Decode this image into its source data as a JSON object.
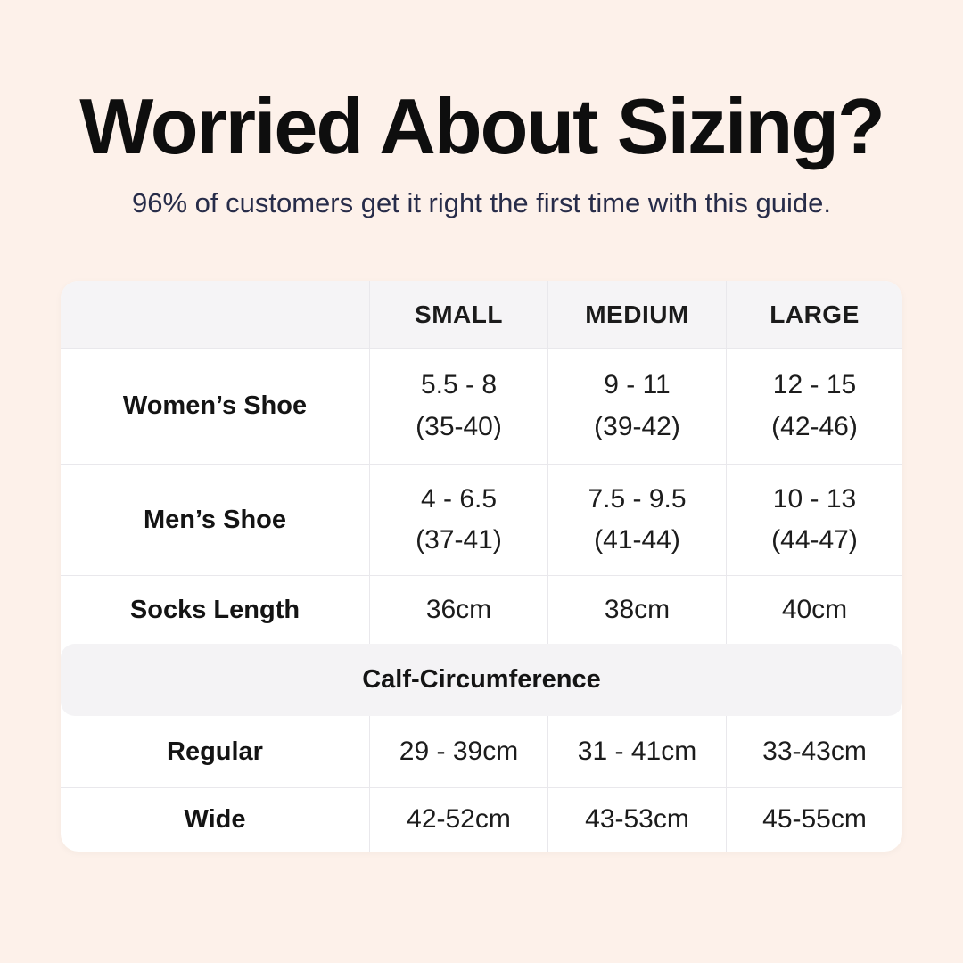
{
  "page": {
    "background_color": "#fdf1ea",
    "title_color": "#0e0e0e",
    "subtitle_color": "#272c49",
    "table_header_bg": "#f5f4f6",
    "table_border_color": "#e9e8ec"
  },
  "header": {
    "title": "Worried About Sizing?",
    "subtitle": "96% of customers get it right the first time with this guide."
  },
  "table": {
    "columns": {
      "c1": "",
      "c2": "SMALL",
      "c3": "MEDIUM",
      "c4": "LARGE"
    },
    "rows": [
      {
        "label": "Women’s Shoe",
        "values": [
          [
            "5.5 - 8",
            "(35-40)"
          ],
          [
            "9 - 11",
            "(39-42)"
          ],
          [
            "12 - 15",
            "(42-46)"
          ]
        ]
      },
      {
        "label": "Men’s Shoe",
        "values": [
          [
            "4 - 6.5",
            "(37-41)"
          ],
          [
            "7.5 - 9.5",
            "(41-44)"
          ],
          [
            "10 - 13",
            "(44-47)"
          ]
        ]
      },
      {
        "label": "Socks Length",
        "values": [
          [
            "36cm"
          ],
          [
            "38cm"
          ],
          [
            "40cm"
          ]
        ]
      }
    ],
    "section_header": "Calf-Circumference",
    "section_rows": [
      {
        "label": "Regular",
        "values": [
          "29 - 39cm",
          "31 - 41cm",
          "33-43cm"
        ]
      },
      {
        "label": "Wide",
        "values": [
          "42-52cm",
          "43-53cm",
          "45-55cm"
        ]
      }
    ]
  },
  "chart_data": {
    "type": "table",
    "title": "Worried About Sizing?",
    "subtitle": "96% of customers get it right the first time with this guide.",
    "columns": [
      "",
      "SMALL",
      "MEDIUM",
      "LARGE"
    ],
    "rows": [
      [
        "Women’s Shoe",
        "5.5 - 8 (35-40)",
        "9 - 11 (39-42)",
        "12 - 15 (42-46)"
      ],
      [
        "Men’s Shoe",
        "4 - 6.5 (37-41)",
        "7.5 - 9.5 (41-44)",
        "10 - 13 (44-47)"
      ],
      [
        "Socks Length",
        "36cm",
        "38cm",
        "40cm"
      ],
      [
        "Calf-Circumference",
        "",
        "",
        ""
      ],
      [
        "Regular",
        "29 - 39cm",
        "31 - 41cm",
        "33-43cm"
      ],
      [
        "Wide",
        "42-52cm",
        "43-53cm",
        "45-55cm"
      ]
    ]
  }
}
